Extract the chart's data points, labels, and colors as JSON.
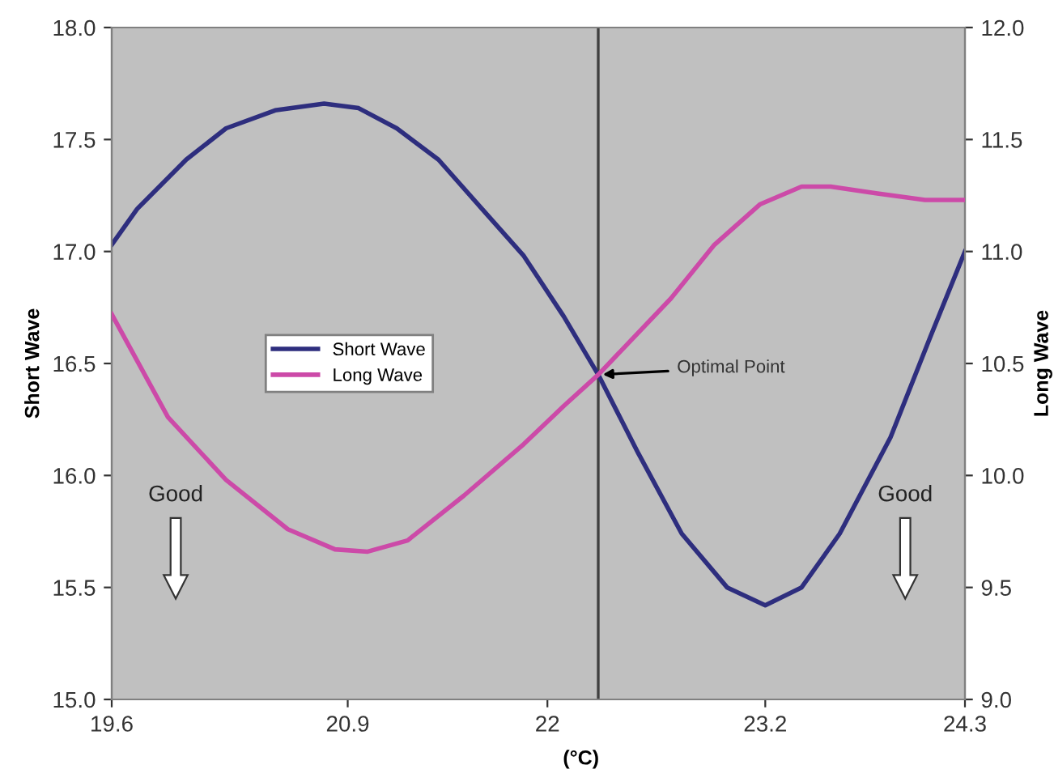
{
  "chart_data": {
    "type": "line",
    "xlabel": "(°C)",
    "ylabel": "Short Wave",
    "y2label": "Long Wave",
    "xlim": [
      19.6,
      24.3
    ],
    "xticks": [
      19.6,
      20.9,
      22,
      23.2,
      24.3
    ],
    "ylim": [
      15.0,
      18.0
    ],
    "yticks": [
      {
        "value": 15,
        "label": "15.0"
      },
      {
        "value": 15.5,
        "label": "15.5"
      },
      {
        "value": 16,
        "label": "16.0"
      },
      {
        "value": 16.5,
        "label": "16.5"
      },
      {
        "value": 17,
        "label": "17.0"
      },
      {
        "value": 17.5,
        "label": "17.5"
      },
      {
        "value": 18,
        "label": "18.0"
      }
    ],
    "y2lim": [
      9.0,
      12.0
    ],
    "y2ticks": [
      {
        "value": 9,
        "label": "9.0"
      },
      {
        "value": 9.5,
        "label": "9.5"
      },
      {
        "value": 10,
        "label": "10.0"
      },
      {
        "value": 10.5,
        "label": "10.5"
      },
      {
        "value": 11,
        "label": "11.0"
      },
      {
        "value": 11.5,
        "label": "11.5"
      },
      {
        "value": 12,
        "label": "12.0"
      }
    ],
    "grid": false,
    "legend": "center left",
    "marker": "none",
    "line_style": "solid",
    "series": [
      {
        "name": "Short Wave",
        "color": "#2e2e7e",
        "x": [
          19.6,
          19.74,
          20.01,
          20.23,
          20.5,
          20.77,
          20.96,
          21.17,
          21.4,
          21.64,
          21.87,
          22.09,
          22.28,
          22.5,
          22.74,
          22.99,
          23.2,
          23.4,
          23.61,
          23.89,
          24.11,
          24.3
        ],
        "values": [
          17.03,
          17.19,
          17.41,
          17.55,
          17.63,
          17.66,
          17.64,
          17.55,
          17.41,
          17.19,
          16.98,
          16.71,
          16.45,
          16.1,
          15.74,
          15.5,
          15.42,
          15.5,
          15.74,
          16.17,
          16.62,
          17.0
        ]
      },
      {
        "name": "Long Wave",
        "color": "#cc4aa8",
        "axis": "y2",
        "x": [
          19.6,
          19.91,
          20.23,
          20.57,
          20.83,
          21.01,
          21.23,
          21.54,
          21.87,
          22.09,
          22.28,
          22.68,
          22.92,
          23.17,
          23.4,
          23.56,
          23.81,
          24.08,
          24.3
        ],
        "values": [
          10.72,
          10.26,
          9.98,
          9.76,
          9.67,
          9.66,
          9.71,
          9.91,
          10.14,
          10.31,
          10.45,
          10.79,
          11.03,
          11.21,
          11.29,
          11.29,
          11.26,
          11.23,
          11.23
        ]
      }
    ],
    "ref_lines": [
      {
        "axis": "x",
        "value": 22.28,
        "color": "#404040"
      }
    ],
    "annotations": [
      {
        "text": "Optimal Point",
        "x": 22.28,
        "y": 16.45
      },
      "Good",
      "Good"
    ]
  }
}
